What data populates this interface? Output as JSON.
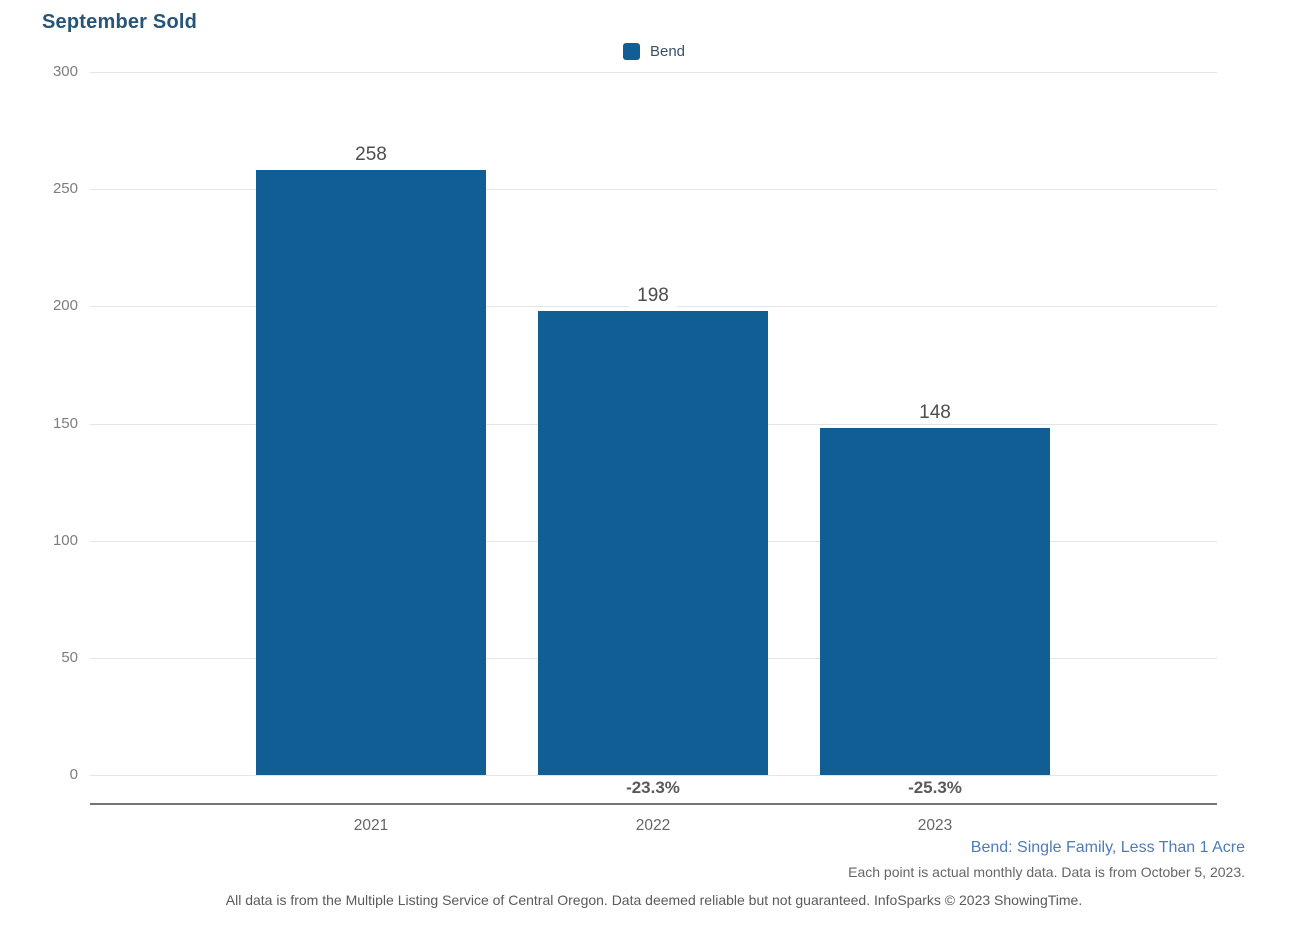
{
  "chart_data": {
    "type": "bar",
    "title": "September Sold",
    "categories": [
      "2021",
      "2022",
      "2023"
    ],
    "series": [
      {
        "name": "Bend",
        "values": [
          258,
          198,
          148
        ]
      }
    ],
    "value_labels": [
      "258",
      "198",
      "148"
    ],
    "pct_change_labels": [
      "",
      "-23.3%",
      "-25.3%"
    ],
    "xlabel": "",
    "ylabel": "",
    "ylim": [
      0,
      300
    ],
    "yticks": [
      0,
      50,
      100,
      150,
      200,
      250,
      300
    ],
    "grid": "horizontal",
    "legend_position": "top-center",
    "bar_color": "#115e94"
  },
  "legend": {
    "items": [
      {
        "label": "Bend",
        "color": "#115e94"
      }
    ]
  },
  "notes": {
    "series_note": "Bend: Single Family, Less Than 1 Acre",
    "data_note": "Each point is actual monthly data. Data is from October 5, 2023.",
    "footer": "All data is from the Multiple Listing Service of Central Oregon. Data deemed reliable but not guaranteed. InfoSparks © 2023 ShowingTime."
  },
  "colors": {
    "bar": "#115e94",
    "title": "#255579",
    "gridline": "#e4e4e4",
    "axis_line": "#757575",
    "series_note_blue": "#4d7cb8"
  }
}
